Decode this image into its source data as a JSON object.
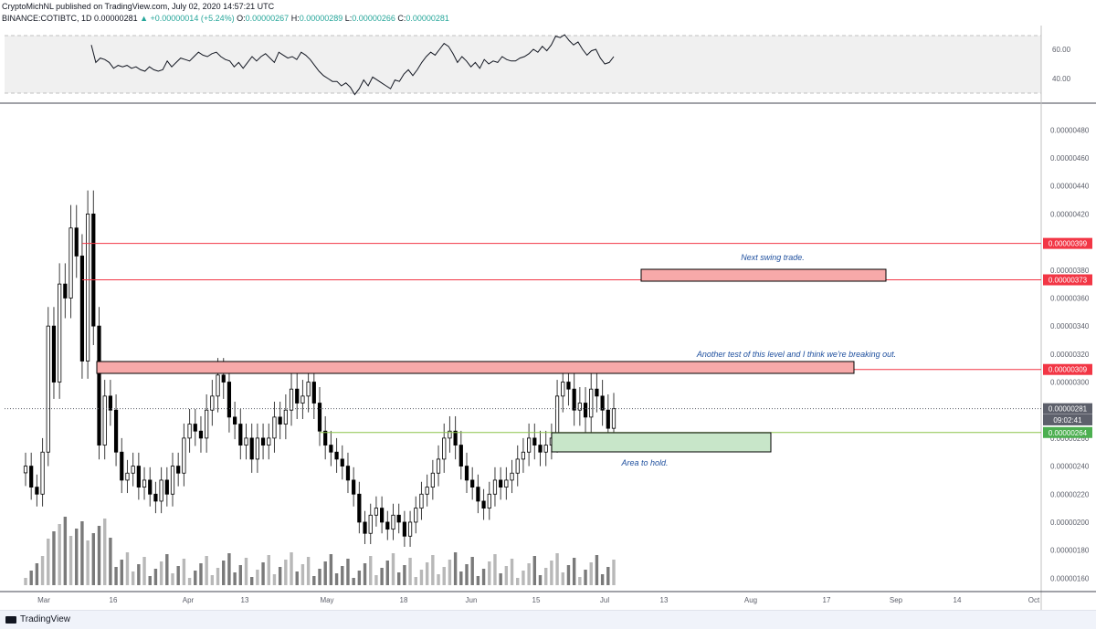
{
  "header": {
    "line1": "CryptoMichNL published on TradingView.com, July 02, 2020 14:57:21 UTC",
    "symbol": "BINANCE:COTIBTC, 1D",
    "price": "0.00000281",
    "change": "▲ +0.00000014 (+5.24%)",
    "o_label": "O:",
    "o_value": "0.00000267",
    "h_label": "H:",
    "h_value": "0.00000289",
    "l_label": "L:",
    "l_value": "0.00000266",
    "c_label": "C:",
    "c_value": "0.00000281"
  },
  "footer": {
    "brand": "TradingView"
  },
  "colors": {
    "resistance": "#f23645",
    "support": "#8bc34a",
    "note": "#1e4f9e",
    "rsi": "#131722"
  },
  "annotations": {
    "next_swing": "Next swing trade.",
    "another_test": "Another test of this level and I think we're breaking out.",
    "area_hold": "Area to hold."
  },
  "chart_data": [
    {
      "type": "line",
      "name": "RSI",
      "yticks": [
        "60.00",
        "40.00"
      ],
      "ylim": [
        25,
        75
      ],
      "values": [
        63,
        51,
        54,
        53,
        51,
        47,
        49,
        48,
        49,
        47,
        48,
        46,
        45,
        48,
        46,
        45,
        46,
        52,
        48,
        51,
        54,
        53,
        52,
        55,
        58,
        56,
        55,
        57,
        58,
        55,
        53,
        52,
        48,
        51,
        47,
        51,
        55,
        52,
        55,
        57,
        54,
        51,
        58,
        56,
        54,
        55,
        53,
        58,
        56,
        53,
        49,
        45,
        42,
        40,
        38,
        38,
        35,
        37,
        34,
        29,
        33,
        39,
        35,
        41,
        39,
        37,
        35,
        33,
        39,
        38,
        43,
        46,
        42,
        46,
        51,
        55,
        58,
        56,
        60,
        64,
        62,
        57,
        51,
        55,
        52,
        48,
        51,
        47,
        53,
        50,
        52,
        51,
        55,
        53,
        52,
        52,
        54,
        55,
        57,
        60,
        58,
        62,
        59,
        63,
        69,
        68,
        70,
        66,
        63,
        65,
        60,
        56,
        59,
        60,
        54,
        50,
        51,
        55
      ]
    },
    {
      "type": "candlestick",
      "name": "COTIBTC",
      "ylim": [
        1.55e-06,
        4.9e-06
      ],
      "yticks": [
        "0.00000480",
        "0.00000460",
        "0.00000440",
        "0.00000420",
        "0.00000400",
        "0.00000380",
        "0.00000360",
        "0.00000340",
        "0.00000320",
        "0.00000300",
        "0.00000280",
        "0.00000260",
        "0.00000240",
        "0.00000220",
        "0.00000200",
        "0.00000180",
        "0.00000160"
      ],
      "xticks": [
        "Mar",
        "16",
        "Apr",
        "13",
        "May",
        "18",
        "Jun",
        "15",
        "Jul",
        "13",
        "Aug",
        "17",
        "Sep",
        "14",
        "Oct"
      ],
      "price_labels": [
        {
          "text": "0.00000399",
          "value": 3.99e-06,
          "color": "#f23645"
        },
        {
          "text": "0.00000373",
          "value": 3.73e-06,
          "color": "#f23645"
        },
        {
          "text": "0.00000309",
          "value": 3.09e-06,
          "color": "#f23645"
        },
        {
          "text": "0.00000281",
          "value": 2.81e-06,
          "color": "#5d606b"
        },
        {
          "text": "09:02:41",
          "value": 2.73e-06,
          "color": "#5d606b"
        },
        {
          "text": "0.00000264",
          "value": 2.64e-06,
          "color": "#4caf50"
        }
      ],
      "closes": [
        2.4,
        2.25,
        2.2,
        2.5,
        3.4,
        3.0,
        3.7,
        3.6,
        4.1,
        3.9,
        3.15,
        4.2,
        3.4,
        2.55,
        2.9,
        2.8,
        2.5,
        2.3,
        2.35,
        2.4,
        2.25,
        2.3,
        2.2,
        2.15,
        2.3,
        2.2,
        2.4,
        2.35,
        2.6,
        2.7,
        2.65,
        2.6,
        2.8,
        2.9,
        3.05,
        3.0,
        2.75,
        2.7,
        2.55,
        2.6,
        2.45,
        2.6,
        2.55,
        2.6,
        2.75,
        2.7,
        2.8,
        2.95,
        2.85,
        2.9,
        3.0,
        2.85,
        2.65,
        2.55,
        2.5,
        2.45,
        2.4,
        2.3,
        2.2,
        2.0,
        1.92,
        2.05,
        2.1,
        2.0,
        1.95,
        2.05,
        2.0,
        1.9,
        2.0,
        2.1,
        2.2,
        2.25,
        2.35,
        2.45,
        2.6,
        2.65,
        2.55,
        2.4,
        2.3,
        2.25,
        2.15,
        2.1,
        2.2,
        2.3,
        2.25,
        2.3,
        2.35,
        2.45,
        2.5,
        2.6,
        2.55,
        2.5,
        2.55,
        2.6,
        2.9,
        3.0,
        2.95,
        2.8,
        2.85,
        2.75,
        2.95,
        2.9,
        2.8,
        2.67,
        2.81
      ],
      "hlines": [
        {
          "value": 3.99e-06,
          "color": "#f23645"
        },
        {
          "value": 3.73e-06,
          "color": "#f23645"
        },
        {
          "value": 3.09e-06,
          "color": "#f23645"
        },
        {
          "value": 2.64e-06,
          "color": "#8bc34a"
        }
      ]
    }
  ]
}
